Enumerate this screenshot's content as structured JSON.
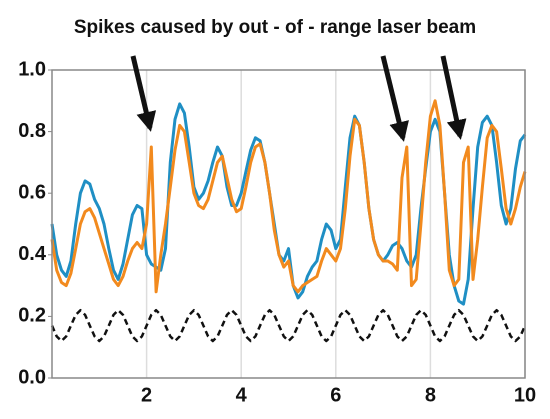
{
  "chart_data": {
    "type": "line",
    "title": "Spikes caused by out - of - range laser beam",
    "x": [
      0,
      0.1,
      0.2,
      0.3,
      0.4,
      0.5,
      0.6,
      0.7,
      0.8,
      0.9,
      1,
      1.1,
      1.2,
      1.3,
      1.4,
      1.5,
      1.6,
      1.7,
      1.8,
      1.9,
      2,
      2.1,
      2.2,
      2.3,
      2.4,
      2.5,
      2.6,
      2.7,
      2.8,
      2.9,
      3,
      3.1,
      3.2,
      3.3,
      3.4,
      3.5,
      3.6,
      3.7,
      3.8,
      3.9,
      4,
      4.1,
      4.2,
      4.3,
      4.4,
      4.5,
      4.6,
      4.7,
      4.8,
      4.9,
      5,
      5.1,
      5.2,
      5.3,
      5.4,
      5.5,
      5.6,
      5.7,
      5.8,
      5.9,
      6,
      6.1,
      6.2,
      6.3,
      6.4,
      6.5,
      6.6,
      6.7,
      6.8,
      6.9,
      7,
      7.1,
      7.2,
      7.3,
      7.4,
      7.5,
      7.6,
      7.7,
      7.8,
      7.9,
      8,
      8.1,
      8.2,
      8.3,
      8.4,
      8.5,
      8.6,
      8.7,
      8.8,
      8.9,
      9,
      9.1,
      9.2,
      9.3,
      9.4,
      9.5,
      9.6,
      9.7,
      9.8,
      9.9,
      10
    ],
    "series": [
      {
        "color": "#1f8fc4",
        "linestyle": "solid",
        "values": [
          0.5,
          0.4,
          0.35,
          0.33,
          0.38,
          0.5,
          0.6,
          0.64,
          0.63,
          0.58,
          0.55,
          0.5,
          0.42,
          0.35,
          0.32,
          0.37,
          0.45,
          0.53,
          0.56,
          0.55,
          0.4,
          0.37,
          0.36,
          0.35,
          0.42,
          0.7,
          0.84,
          0.89,
          0.86,
          0.75,
          0.62,
          0.58,
          0.6,
          0.64,
          0.7,
          0.75,
          0.72,
          0.62,
          0.56,
          0.56,
          0.6,
          0.67,
          0.74,
          0.78,
          0.77,
          0.7,
          0.6,
          0.5,
          0.4,
          0.38,
          0.42,
          0.3,
          0.26,
          0.28,
          0.33,
          0.36,
          0.38,
          0.45,
          0.5,
          0.48,
          0.42,
          0.45,
          0.62,
          0.78,
          0.85,
          0.82,
          0.7,
          0.55,
          0.45,
          0.4,
          0.38,
          0.4,
          0.43,
          0.44,
          0.42,
          0.38,
          0.36,
          0.4,
          0.55,
          0.68,
          0.8,
          0.84,
          0.8,
          0.6,
          0.4,
          0.3,
          0.25,
          0.24,
          0.32,
          0.55,
          0.75,
          0.83,
          0.85,
          0.82,
          0.7,
          0.56,
          0.5,
          0.55,
          0.68,
          0.77,
          0.79
        ]
      },
      {
        "color": "#f28a1e",
        "linestyle": "solid",
        "values": [
          0.45,
          0.35,
          0.31,
          0.3,
          0.34,
          0.42,
          0.5,
          0.54,
          0.55,
          0.52,
          0.47,
          0.42,
          0.37,
          0.32,
          0.3,
          0.33,
          0.38,
          0.42,
          0.44,
          0.42,
          0.5,
          0.75,
          0.28,
          0.4,
          0.5,
          0.62,
          0.74,
          0.82,
          0.8,
          0.7,
          0.6,
          0.56,
          0.55,
          0.58,
          0.64,
          0.7,
          0.72,
          0.65,
          0.58,
          0.54,
          0.55,
          0.62,
          0.7,
          0.75,
          0.76,
          0.7,
          0.6,
          0.48,
          0.4,
          0.36,
          0.38,
          0.3,
          0.28,
          0.3,
          0.31,
          0.32,
          0.33,
          0.38,
          0.42,
          0.4,
          0.38,
          0.42,
          0.55,
          0.72,
          0.84,
          0.82,
          0.7,
          0.55,
          0.45,
          0.4,
          0.38,
          0.38,
          0.37,
          0.35,
          0.65,
          0.75,
          0.3,
          0.32,
          0.5,
          0.7,
          0.85,
          0.9,
          0.82,
          0.6,
          0.35,
          0.3,
          0.32,
          0.7,
          0.75,
          0.32,
          0.45,
          0.62,
          0.78,
          0.82,
          0.8,
          0.68,
          0.55,
          0.5,
          0.55,
          0.62,
          0.67
        ]
      },
      {
        "color": "#111111",
        "linestyle": "dashed",
        "values": [
          0.17,
          0.135,
          0.12,
          0.135,
          0.17,
          0.205,
          0.22,
          0.205,
          0.17,
          0.135,
          0.12,
          0.135,
          0.17,
          0.205,
          0.22,
          0.205,
          0.17,
          0.135,
          0.12,
          0.135,
          0.17,
          0.205,
          0.22,
          0.205,
          0.17,
          0.135,
          0.12,
          0.135,
          0.17,
          0.205,
          0.22,
          0.205,
          0.17,
          0.135,
          0.12,
          0.135,
          0.17,
          0.205,
          0.22,
          0.205,
          0.17,
          0.135,
          0.12,
          0.135,
          0.17,
          0.205,
          0.22,
          0.205,
          0.17,
          0.135,
          0.12,
          0.135,
          0.17,
          0.205,
          0.22,
          0.205,
          0.17,
          0.135,
          0.12,
          0.135,
          0.17,
          0.205,
          0.22,
          0.205,
          0.17,
          0.135,
          0.12,
          0.135,
          0.17,
          0.205,
          0.22,
          0.205,
          0.17,
          0.135,
          0.12,
          0.135,
          0.17,
          0.205,
          0.22,
          0.205,
          0.17,
          0.135,
          0.12,
          0.135,
          0.17,
          0.205,
          0.22,
          0.205,
          0.17,
          0.135,
          0.12,
          0.135,
          0.17,
          0.205,
          0.22,
          0.205,
          0.17,
          0.135,
          0.12,
          0.135,
          0.17
        ]
      }
    ],
    "xlim": [
      0,
      10
    ],
    "xticks": [
      2,
      4,
      6,
      8,
      10
    ],
    "ylim": [
      0,
      1
    ],
    "yticks": [
      {
        "value": 0,
        "label": "0.0"
      },
      0.2,
      0.4,
      0.6,
      0.8,
      {
        "value": 1,
        "label": "1.0"
      }
    ],
    "grid": "x"
  }
}
